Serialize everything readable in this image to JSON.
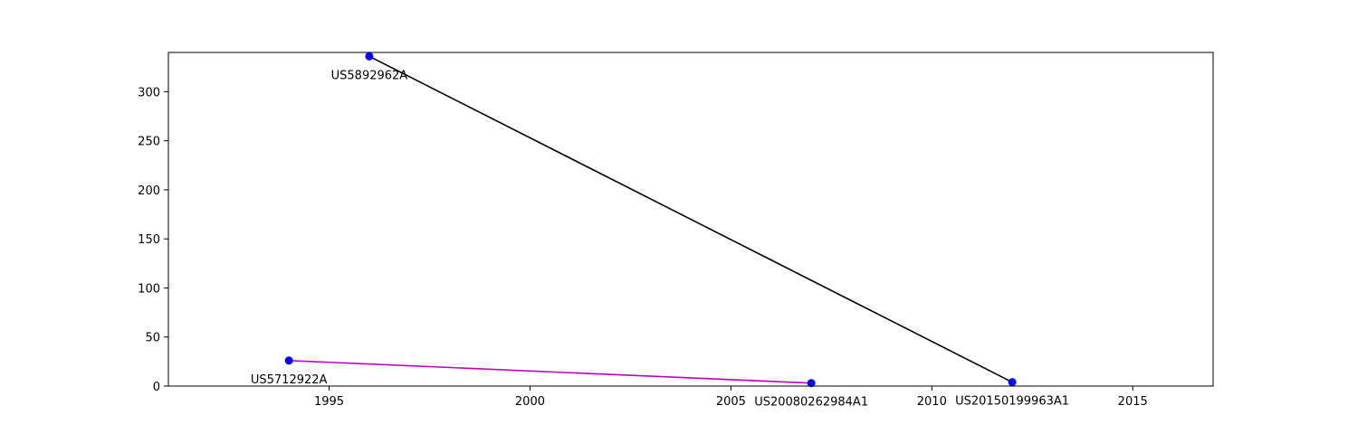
{
  "chart_data": {
    "type": "line",
    "title": "",
    "xlabel": "",
    "ylabel": "",
    "xlim": [
      1991.0,
      2017.0
    ],
    "ylim": [
      0,
      340
    ],
    "x_ticks": [
      1995,
      2000,
      2005,
      2010,
      2015
    ],
    "y_ticks": [
      0,
      50,
      100,
      150,
      200,
      250,
      300
    ],
    "grid": false,
    "legend": "none",
    "marker_color": "#0000ff",
    "series": [
      {
        "color": "#000000",
        "points": [
          {
            "x": 1996.0,
            "y": 336,
            "label": "US5892962A"
          },
          {
            "x": 2012.0,
            "y": 4,
            "label": "US20150199963A1"
          }
        ]
      },
      {
        "color": "#bf00bf",
        "points": [
          {
            "x": 1994.0,
            "y": 26,
            "label": "US5712922A"
          },
          {
            "x": 2007.0,
            "y": 3,
            "label": "US20080262984A1"
          }
        ]
      }
    ]
  }
}
